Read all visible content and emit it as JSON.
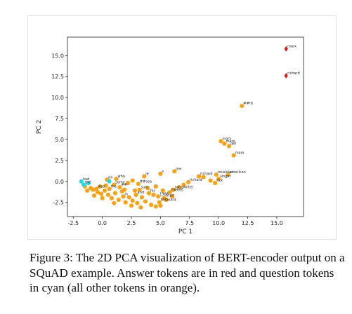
{
  "chart_data": {
    "type": "scatter",
    "title": "",
    "xlabel": "PC 1",
    "ylabel": "PC 2",
    "xlim": [
      -3,
      17.3
    ],
    "ylim": [
      -4.2,
      17.2
    ],
    "xticks": [
      "-2.5",
      "0.0",
      "2.5",
      "5.0",
      "7.5",
      "10.0",
      "12.5",
      "15.0"
    ],
    "xtick_values": [
      -2.5,
      0,
      2.5,
      5,
      7.5,
      10,
      12.5,
      15
    ],
    "yticks": [
      "-2.5",
      "0.0",
      "2.5",
      "5.0",
      "7.5",
      "10.0",
      "12.5",
      "15.0"
    ],
    "ytick_values": [
      -2.5,
      0,
      2.5,
      5,
      7.5,
      10,
      12.5,
      15
    ],
    "grid": false,
    "colors": {
      "answer": "#e8141b",
      "question": "#27d7e4",
      "other": "#f5a31a"
    },
    "series": [
      {
        "role": "answer",
        "marker": "diamond",
        "points": [
          {
            "x": 15.8,
            "y": 15.8,
            "label": "marx"
          },
          {
            "x": 15.8,
            "y": 12.6,
            "label": "richard"
          }
        ]
      },
      {
        "role": "question",
        "marker": "circle",
        "points": [
          {
            "x": -1.8,
            "y": 0.0,
            "label": "had"
          },
          {
            "x": -1.6,
            "y": -0.4,
            "label": "the"
          },
          {
            "x": 0.6,
            "y": 0.0,
            "label": ""
          },
          {
            "x": -1.2,
            "y": -0.2,
            "label": ""
          }
        ]
      },
      {
        "role": "other",
        "marker": "circle",
        "points": [
          {
            "x": 12.0,
            "y": 9.0,
            "label": "##rd"
          },
          {
            "x": 10.2,
            "y": 4.8,
            "label": "marx"
          },
          {
            "x": 10.5,
            "y": 4.5,
            "label": "marx"
          },
          {
            "x": 10.9,
            "y": 4.2,
            "label": "def"
          },
          {
            "x": 11.3,
            "y": 3.1,
            "label": "marx"
          },
          {
            "x": 6.2,
            "y": 1.2,
            "label": "me"
          },
          {
            "x": 10.8,
            "y": 0.8,
            "label": "american"
          },
          {
            "x": 9.8,
            "y": 0.8,
            "label": "musician"
          },
          {
            "x": 8.3,
            "y": 0.6,
            "label": "richard"
          },
          {
            "x": 10.0,
            "y": 0.3,
            "label": "singer"
          },
          {
            "x": 9.7,
            "y": -0.2,
            "label": "rick"
          },
          {
            "x": 7.4,
            "y": -0.1,
            "label": "richard"
          },
          {
            "x": 5.0,
            "y": 0.9,
            "label": "s"
          },
          {
            "x": 3.6,
            "y": 0.6,
            "label": "le"
          },
          {
            "x": 1.2,
            "y": 0.3,
            "label": "who"
          },
          {
            "x": 0.4,
            "y": 0.2,
            "label": "on"
          },
          {
            "x": 1.0,
            "y": -0.4,
            "label": "some"
          },
          {
            "x": 1.5,
            "y": -0.7,
            "label": "##"
          },
          {
            "x": 3.1,
            "y": -0.3,
            "label": "##osa"
          },
          {
            "x": 3.2,
            "y": -1.0,
            "label": "sum"
          },
          {
            "x": 6.1,
            "y": -1.0,
            "label": "songwriter"
          },
          {
            "x": 5.8,
            "y": -1.3,
            "label": "friends"
          },
          {
            "x": 4.8,
            "y": -1.8,
            "label": "1988"
          },
          {
            "x": 4.9,
            "y": -2.5,
            "label": "billboard"
          },
          {
            "x": 4.0,
            "y": -1.4,
            "label": "his"
          },
          {
            "x": 2.9,
            "y": -1.6,
            "label": "and"
          },
          {
            "x": 0.6,
            "y": -0.9,
            "label": "the"
          },
          {
            "x": -0.5,
            "y": -0.9,
            "label": "was"
          },
          {
            "x": 1.8,
            "y": -1.8,
            "label": "in"
          },
          {
            "x": 5.3,
            "y": -2.0,
            "label": "chart"
          },
          {
            "x": -1.5,
            "y": -0.6,
            "label": ""
          },
          {
            "x": -1.0,
            "y": -0.8,
            "label": ""
          },
          {
            "x": -0.8,
            "y": -1.0,
            "label": ""
          },
          {
            "x": -0.4,
            "y": -1.3,
            "label": ""
          },
          {
            "x": -0.1,
            "y": -1.5,
            "label": ""
          },
          {
            "x": 0.2,
            "y": -1.1,
            "label": ""
          },
          {
            "x": 0.5,
            "y": -1.6,
            "label": ""
          },
          {
            "x": 0.8,
            "y": -2.0,
            "label": ""
          },
          {
            "x": 1.1,
            "y": -1.4,
            "label": ""
          },
          {
            "x": 1.4,
            "y": -2.2,
            "label": ""
          },
          {
            "x": 1.7,
            "y": -1.2,
            "label": ""
          },
          {
            "x": 2.0,
            "y": -2.5,
            "label": ""
          },
          {
            "x": 2.3,
            "y": -1.9,
            "label": ""
          },
          {
            "x": 2.6,
            "y": -2.3,
            "label": ""
          },
          {
            "x": 2.8,
            "y": -1.1,
            "label": ""
          },
          {
            "x": 3.0,
            "y": -2.6,
            "label": ""
          },
          {
            "x": 3.4,
            "y": -1.9,
            "label": ""
          },
          {
            "x": 3.7,
            "y": -2.4,
            "label": ""
          },
          {
            "x": 3.9,
            "y": -0.8,
            "label": ""
          },
          {
            "x": 4.2,
            "y": -2.8,
            "label": ""
          },
          {
            "x": 4.4,
            "y": -1.6,
            "label": ""
          },
          {
            "x": 4.6,
            "y": -3.0,
            "label": ""
          },
          {
            "x": 5.0,
            "y": -2.9,
            "label": ""
          },
          {
            "x": 5.5,
            "y": -2.2,
            "label": ""
          },
          {
            "x": 3.3,
            "y": -3.1,
            "label": ""
          },
          {
            "x": 2.5,
            "y": -2.9,
            "label": ""
          },
          {
            "x": 1.0,
            "y": -2.6,
            "label": ""
          },
          {
            "x": 0.0,
            "y": -2.0,
            "label": ""
          },
          {
            "x": -0.7,
            "y": -1.7,
            "label": ""
          },
          {
            "x": -1.3,
            "y": -1.1,
            "label": ""
          },
          {
            "x": 6.6,
            "y": -0.7,
            "label": ""
          },
          {
            "x": 7.0,
            "y": -0.4,
            "label": ""
          },
          {
            "x": 8.7,
            "y": 0.5,
            "label": ""
          },
          {
            "x": 9.3,
            "y": 0.1,
            "label": ""
          },
          {
            "x": 2.2,
            "y": -0.2,
            "label": ""
          },
          {
            "x": 2.6,
            "y": 0.1,
            "label": ""
          },
          {
            "x": 1.9,
            "y": -1.0,
            "label": ""
          },
          {
            "x": 0.3,
            "y": -0.5,
            "label": ""
          },
          {
            "x": -0.2,
            "y": -0.6,
            "label": ""
          },
          {
            "x": 4.6,
            "y": -0.6,
            "label": ""
          },
          {
            "x": 5.2,
            "y": -1.1,
            "label": ""
          },
          {
            "x": 6.0,
            "y": -1.8,
            "label": ""
          }
        ]
      }
    ]
  },
  "caption": {
    "text": "Figure 3: The 2D PCA visualization of BERT-encoder output on a SQuAD example. Answer tokens are in red and question tokens in cyan (all other tokens in orange)."
  }
}
